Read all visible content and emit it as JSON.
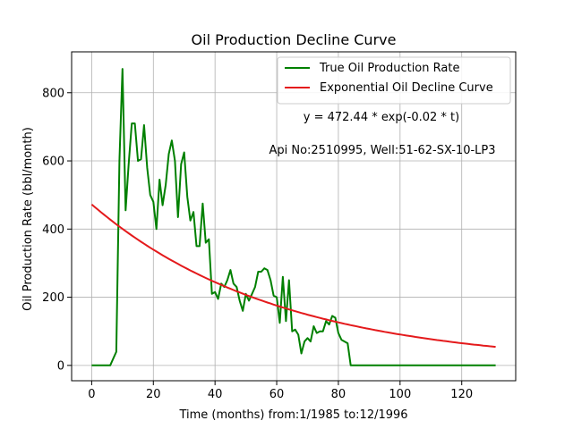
{
  "chart_data": {
    "type": "line",
    "title": "Oil Production Decline Curve",
    "xlabel": "Time (months) from:1/1985 to:12/1996",
    "ylabel": "Oil Production Rate (bbl/month)",
    "xlim": [
      -6.5,
      137.5
    ],
    "ylim": [
      -45,
      920
    ],
    "xticks": [
      0,
      20,
      40,
      60,
      80,
      100,
      120
    ],
    "yticks": [
      0,
      200,
      400,
      600,
      800
    ],
    "grid": true,
    "legend_position": "top-right",
    "annotations": [
      "y = 472.44 * exp(-0.02 * t)",
      "Api No:2510995, Well:51-62-SX-10-LP3"
    ],
    "series": [
      {
        "name": "True Oil Production Rate",
        "color": "#008000",
        "x": [
          0,
          6,
          8,
          9,
          10,
          11,
          12,
          13,
          14,
          15,
          16,
          17,
          18,
          19,
          20,
          21,
          22,
          23,
          24,
          25,
          26,
          27,
          28,
          29,
          30,
          31,
          32,
          33,
          34,
          35,
          36,
          37,
          38,
          39,
          40,
          41,
          42,
          43,
          44,
          45,
          46,
          47,
          48,
          49,
          50,
          51,
          52,
          53,
          54,
          55,
          56,
          57,
          58,
          59,
          60,
          61,
          62,
          63,
          64,
          65,
          66,
          67,
          68,
          69,
          70,
          71,
          72,
          73,
          74,
          75,
          76,
          77,
          78,
          79,
          80,
          81,
          82,
          83,
          84,
          85,
          131
        ],
        "y": [
          0,
          0,
          40,
          600,
          870,
          455,
          590,
          710,
          710,
          600,
          605,
          705,
          580,
          500,
          480,
          400,
          545,
          470,
          530,
          620,
          660,
          600,
          435,
          590,
          625,
          495,
          425,
          450,
          350,
          350,
          475,
          360,
          370,
          210,
          215,
          195,
          240,
          230,
          250,
          280,
          240,
          230,
          190,
          160,
          210,
          190,
          210,
          230,
          275,
          275,
          285,
          280,
          250,
          205,
          200,
          125,
          260,
          130,
          250,
          100,
          105,
          90,
          35,
          70,
          80,
          70,
          115,
          95,
          100,
          100,
          130,
          120,
          145,
          140,
          95,
          75,
          70,
          65,
          0,
          0,
          0
        ]
      },
      {
        "name": "Exponential Oil Decline Curve",
        "color": "#e41a1c",
        "function": {
          "a": 472.44,
          "b": -0.0165
        },
        "x_range": [
          0,
          131
        ]
      }
    ]
  }
}
